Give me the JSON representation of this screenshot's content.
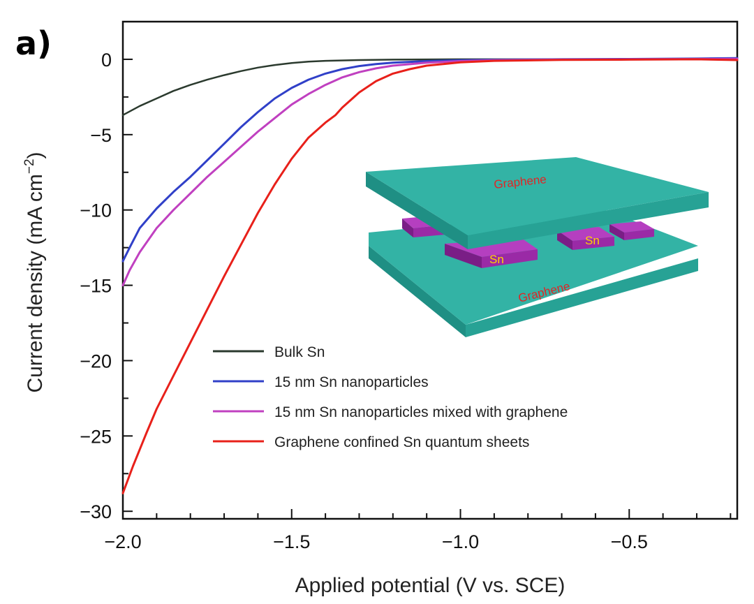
{
  "panel_label": "a)",
  "chart_data": {
    "type": "line",
    "xlabel": "Applied potential (V vs. SCE)",
    "ylabel": "Current density (mA cm",
    "ylabel_sup": "−2",
    "ylabel_close": ")",
    "xlim": [
      -2.0,
      -0.18
    ],
    "ylim": [
      -30.5,
      2.5
    ],
    "x_ticks": [
      -2.0,
      -1.5,
      -1.0,
      -0.5
    ],
    "x_tick_labels": [
      "−2.0",
      "−1.5",
      "−1.0",
      "−0.5"
    ],
    "y_ticks": [
      0,
      -5,
      -10,
      -15,
      -20,
      -25,
      -30
    ],
    "y_tick_labels": [
      "0",
      "−5",
      "−10",
      "−15",
      "−20",
      "−25",
      "−30"
    ],
    "legend_position": "lower-center",
    "series": [
      {
        "name": "Bulk Sn",
        "color": "#2b3a2e",
        "x": [
          -2.0,
          -1.95,
          -1.9,
          -1.85,
          -1.8,
          -1.75,
          -1.7,
          -1.65,
          -1.6,
          -1.55,
          -1.5,
          -1.45,
          -1.4,
          -1.3,
          -1.2,
          -1.0,
          -0.8,
          -0.6,
          -0.4,
          -0.18
        ],
        "y": [
          -3.7,
          -3.1,
          -2.6,
          -2.1,
          -1.7,
          -1.35,
          -1.05,
          -0.78,
          -0.55,
          -0.38,
          -0.25,
          -0.15,
          -0.1,
          -0.05,
          -0.02,
          0.0,
          0.0,
          0.0,
          0.02,
          0.05
        ]
      },
      {
        "name": "15 nm Sn nanoparticles",
        "color": "#3040c8",
        "x": [
          -2.0,
          -1.98,
          -1.95,
          -1.9,
          -1.85,
          -1.8,
          -1.75,
          -1.7,
          -1.65,
          -1.6,
          -1.55,
          -1.5,
          -1.45,
          -1.4,
          -1.35,
          -1.3,
          -1.25,
          -1.2,
          -1.1,
          -1.0,
          -0.9,
          -0.7,
          -0.5,
          -0.3,
          -0.18
        ],
        "y": [
          -13.4,
          -12.5,
          -11.2,
          -9.9,
          -8.8,
          -7.8,
          -6.7,
          -5.6,
          -4.5,
          -3.5,
          -2.6,
          -1.9,
          -1.35,
          -0.95,
          -0.65,
          -0.45,
          -0.32,
          -0.22,
          -0.12,
          -0.06,
          -0.03,
          0.0,
          0.02,
          0.05,
          0.08
        ]
      },
      {
        "name": "15 nm Sn nanoparticles mixed with graphene",
        "color": "#c040c0",
        "x": [
          -2.0,
          -1.98,
          -1.95,
          -1.9,
          -1.85,
          -1.8,
          -1.75,
          -1.7,
          -1.65,
          -1.6,
          -1.55,
          -1.5,
          -1.45,
          -1.4,
          -1.35,
          -1.3,
          -1.25,
          -1.2,
          -1.1,
          -1.0,
          -0.9,
          -0.7,
          -0.5,
          -0.3,
          -0.18
        ],
        "y": [
          -15.0,
          -14.0,
          -12.8,
          -11.2,
          -10.0,
          -8.9,
          -7.8,
          -6.8,
          -5.8,
          -4.8,
          -3.9,
          -3.0,
          -2.3,
          -1.7,
          -1.2,
          -0.85,
          -0.6,
          -0.42,
          -0.22,
          -0.12,
          -0.06,
          -0.02,
          0.0,
          0.02,
          0.03
        ]
      },
      {
        "name": "Graphene confined Sn quantum sheets",
        "color": "#e8201a",
        "x": [
          -2.0,
          -1.97,
          -1.93,
          -1.9,
          -1.85,
          -1.8,
          -1.75,
          -1.7,
          -1.65,
          -1.6,
          -1.55,
          -1.5,
          -1.45,
          -1.4,
          -1.37,
          -1.35,
          -1.3,
          -1.25,
          -1.2,
          -1.15,
          -1.1,
          -1.0,
          -0.9,
          -0.7,
          -0.5,
          -0.3,
          -0.18
        ],
        "y": [
          -28.8,
          -27.0,
          -24.8,
          -23.2,
          -21.0,
          -18.8,
          -16.6,
          -14.4,
          -12.3,
          -10.2,
          -8.3,
          -6.6,
          -5.2,
          -4.2,
          -3.7,
          -3.2,
          -2.2,
          -1.45,
          -0.95,
          -0.65,
          -0.42,
          -0.2,
          -0.1,
          -0.04,
          -0.02,
          0.0,
          -0.05
        ]
      }
    ]
  },
  "inset": {
    "top_sheet_label": "Graphene",
    "bottom_sheet_label": "Graphene",
    "particle_label_1": "Sn",
    "particle_label_2": "Sn",
    "sheet_color": "#33b3a5",
    "particle_color": "#9a2aa6",
    "sheet_text_color": "#e02525",
    "particle_text_color": "#ffd400"
  }
}
